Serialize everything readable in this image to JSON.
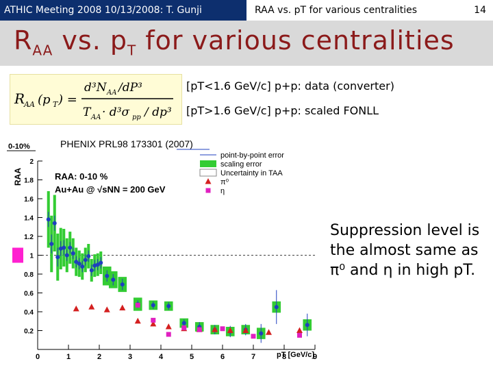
{
  "header": {
    "left_text": "ATHIC Meeting 2008 10/13/2008: T. Gunji",
    "right_text": "RAA vs. pT for various centralities",
    "page_number": "14"
  },
  "title": {
    "main_r": "R",
    "sub_aa": "AA",
    "middle": " vs. p",
    "sub_t": "T",
    "rest": " for various centralities"
  },
  "formula": {
    "lhs": "R",
    "lhs_sub": "AA",
    "lhs_arg": "(p",
    "lhs_arg_sub": "T",
    "lhs_arg_close": ") =",
    "num_text": "d³N",
    "num_sub": "AA",
    "num_tail": "/dP³",
    "den_text": "T",
    "den_sub": "AA",
    "den_mid": "· d³σ",
    "den_sub2": "pp",
    "den_tail": "/ dp³",
    "colors": {
      "text": "#000000",
      "background": "#fffcd6"
    }
  },
  "notes": [
    "[pT<1.6 GeV/c] p+p: data (converter)",
    "[pT>1.6 GeV/c] p+p: scaled FONLL"
  ],
  "side_text": "Suppression level is the almost same as π⁰ and η in high pT.",
  "chart_data": {
    "type": "scatter",
    "title": "PHENIX PRL98 173301 (2007)",
    "centrality_label": "0-10%",
    "panel_label": "RAA: 0-10 %",
    "system_label": "Au+Au @ √sNN = 200 GeV",
    "xlabel": "pT [GeV/c]",
    "ylabel": "RAA",
    "xlim": [
      0,
      9
    ],
    "ylim": [
      0,
      2.0
    ],
    "x_ticks": [
      "0",
      "1",
      "2",
      "3",
      "4",
      "5",
      "6",
      "7",
      "8",
      "9"
    ],
    "y_ticks": [
      "0.2",
      "0.4",
      "0.6",
      "0.8",
      "1",
      "1.2",
      "1.4",
      "1.6",
      "1.8",
      "2"
    ],
    "legend": {
      "position": "top-right",
      "entries": [
        "point-by-point error",
        "scaling error",
        "Uncertainty in TAA",
        "π⁰",
        "η"
      ]
    },
    "colors": {
      "electron": "#1f3fbf",
      "pi0": "#d42020",
      "eta": "#e020c0",
      "scaling_box": "#33cc33",
      "taa_box": "#ff20d0"
    },
    "series": [
      {
        "name": "point-by-point error",
        "x": [
          0.35,
          0.45,
          0.55,
          0.65,
          0.75,
          0.85,
          0.95,
          1.05,
          1.15,
          1.25,
          1.35,
          1.45,
          1.55,
          1.65,
          1.75,
          1.85,
          1.95,
          2.05,
          2.25,
          2.45,
          2.75,
          3.25,
          3.75,
          4.25,
          4.75,
          5.25,
          5.75,
          6.25,
          6.75,
          7.25,
          7.75,
          8.75
        ],
        "y": [
          1.38,
          1.12,
          1.34,
          0.98,
          1.07,
          1.08,
          1.0,
          1.08,
          1.02,
          0.93,
          0.91,
          0.88,
          0.95,
          0.99,
          0.84,
          0.89,
          0.9,
          0.92,
          0.78,
          0.74,
          0.69,
          0.48,
          0.47,
          0.46,
          0.28,
          0.24,
          0.21,
          0.19,
          0.21,
          0.17,
          0.45,
          0.26
        ],
        "yerr": [
          0.08,
          0.1,
          0.08,
          0.1,
          0.08,
          0.08,
          0.06,
          0.06,
          0.06,
          0.06,
          0.06,
          0.06,
          0.06,
          0.06,
          0.06,
          0.06,
          0.06,
          0.06,
          0.06,
          0.06,
          0.06,
          0.04,
          0.04,
          0.04,
          0.04,
          0.05,
          0.05,
          0.06,
          0.06,
          0.1,
          0.18,
          0.12
        ],
        "syst": [
          0.3,
          0.3,
          0.3,
          0.25,
          0.22,
          0.2,
          0.18,
          0.17,
          0.16,
          0.15,
          0.14,
          0.14,
          0.13,
          0.13,
          0.12,
          0.12,
          0.12,
          0.12,
          0.1,
          0.09,
          0.08,
          0.07,
          0.05,
          0.05,
          0.05,
          0.05,
          0.05,
          0.05,
          0.05,
          0.06,
          0.06,
          0.06
        ]
      },
      {
        "name": "π⁰",
        "x": [
          1.25,
          1.75,
          2.25,
          2.75,
          3.25,
          3.75,
          4.25,
          4.75,
          5.25,
          5.75,
          6.25,
          6.75,
          7.5,
          8.5
        ],
        "y": [
          0.43,
          0.45,
          0.42,
          0.44,
          0.3,
          0.27,
          0.24,
          0.22,
          0.21,
          0.21,
          0.2,
          0.2,
          0.18,
          0.2
        ]
      },
      {
        "name": "η",
        "x": [
          3.25,
          3.75,
          4.25,
          4.75,
          5.25,
          6.0,
          7.0,
          8.5
        ],
        "y": [
          0.47,
          0.31,
          0.16,
          0.23,
          0.21,
          0.22,
          0.14,
          0.15
        ]
      }
    ]
  }
}
